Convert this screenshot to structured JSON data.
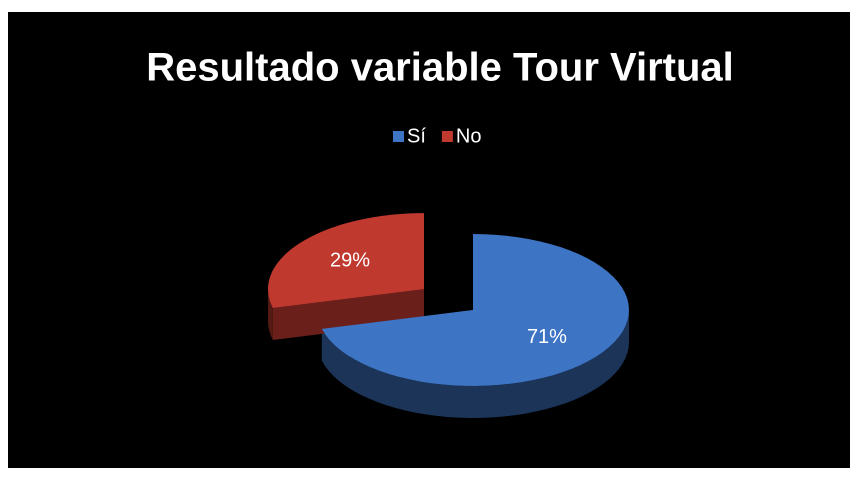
{
  "chart_data": {
    "type": "pie",
    "title": "Resultado variable Tour Virtual",
    "categories": [
      "Sí",
      "No"
    ],
    "values": [
      71,
      29
    ],
    "value_labels": [
      "71%",
      "29%"
    ],
    "colors": [
      "#3d74c4",
      "#c0392f"
    ],
    "legend": "top"
  }
}
